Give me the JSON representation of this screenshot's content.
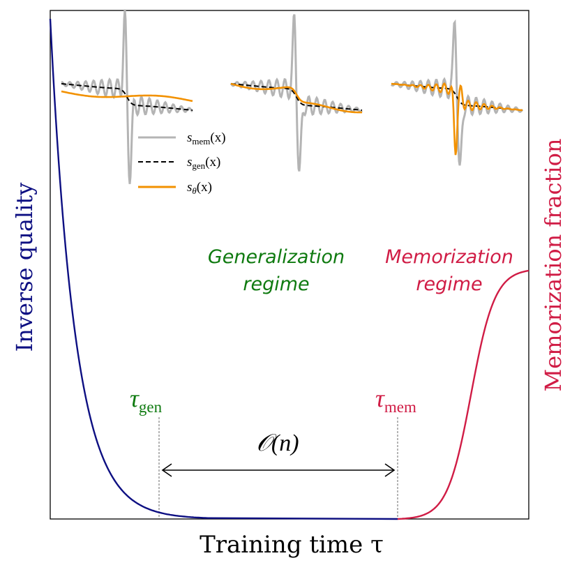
{
  "axes": {
    "xlabel": "Training time τ",
    "ylabel_left": "Inverse quality",
    "ylabel_right": "Memorization fraction"
  },
  "regimes": {
    "generalization": [
      "Generalization",
      "regime"
    ],
    "memorization": [
      "Memorization",
      "regime"
    ]
  },
  "markers": {
    "tau_gen": {
      "sym": "τ",
      "sub": "gen"
    },
    "tau_mem": {
      "sym": "τ",
      "sub": "mem"
    },
    "interval": "𝒪(n)"
  },
  "legend": [
    {
      "sym": "s",
      "sub": "mem",
      "arg": "(x)"
    },
    {
      "sym": "s",
      "sub": "gen",
      "arg": "(x)"
    },
    {
      "sym": "s",
      "sub": "θ",
      "arg": "(x)"
    }
  ],
  "colors": {
    "quality": "#0d0f82",
    "memorization": "#d01c45",
    "generalization": "#0f7a10",
    "s_mem": "#b4b4b4",
    "s_gen": "#000000",
    "s_theta": "#f29100"
  }
}
